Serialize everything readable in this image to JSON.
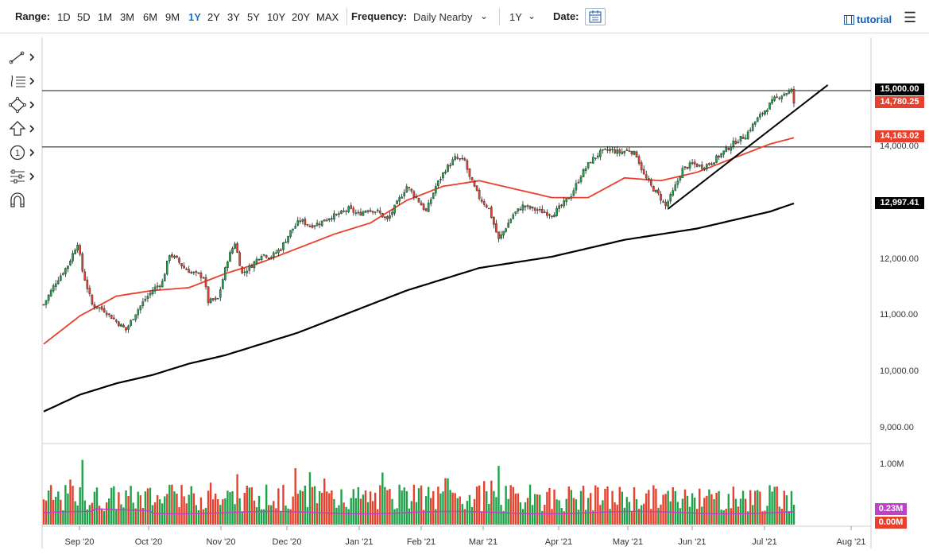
{
  "toolbar": {
    "range_label": "Range:",
    "ranges": [
      "1D",
      "5D",
      "1M",
      "3M",
      "6M",
      "9M",
      "1Y",
      "2Y",
      "3Y",
      "5Y",
      "10Y",
      "20Y",
      "MAX"
    ],
    "active_range": "1Y",
    "frequency_label": "Frequency:",
    "frequency_value": "Daily Nearby",
    "period_value": "1Y",
    "date_label": "Date:",
    "tutorial_label": "tutorial"
  },
  "drawing_tools": [
    "line-tool-icon",
    "fib-tool-icon",
    "shapes-tool-icon",
    "arrow-tool-icon",
    "numbered-marker-icon",
    "settings-tool-icon",
    "magnet-icon"
  ],
  "price_tags": [
    {
      "label": "15,000.00",
      "color": "#000000"
    },
    {
      "label": "14,780.25",
      "color": "#e8402c"
    },
    {
      "label": "14,163.02",
      "color": "#e8402c"
    },
    {
      "label": "12,997.41",
      "color": "#000000"
    }
  ],
  "volume_tags": [
    {
      "label": "0.23M",
      "color": "#c040c8"
    },
    {
      "label": "0.00M",
      "color": "#e8402c"
    }
  ],
  "chart_data": {
    "type": "candlestick",
    "x_tick_labels": [
      "Sep '20",
      "Oct '20",
      "Nov '20",
      "Dec '20",
      "Jan '21",
      "Feb '21",
      "Mar '21",
      "Apr '21",
      "May '21",
      "Jun '21",
      "Jul '21",
      "Aug '21"
    ],
    "y_tick_labels": [
      "15,000.00",
      "14,000.00",
      "12,000.00",
      "11,000.00",
      "10,000.00",
      "9,000.00"
    ],
    "y_ticks": [
      15000,
      14000,
      12000,
      11000,
      10000,
      9000
    ],
    "ylim": [
      8950,
      15800
    ],
    "volume_tick_labels": [
      "1.00M"
    ],
    "volume_ylim": [
      0,
      1.3
    ],
    "horizontal_lines": [
      15000,
      14000
    ],
    "anchors": [
      [
        0,
        11200
      ],
      [
        5,
        11600
      ],
      [
        10,
        11900
      ],
      [
        14,
        12300
      ],
      [
        16,
        11800
      ],
      [
        20,
        11200
      ],
      [
        25,
        11100
      ],
      [
        30,
        10900
      ],
      [
        34,
        10750
      ],
      [
        38,
        11050
      ],
      [
        42,
        11300
      ],
      [
        46,
        11500
      ],
      [
        49,
        11600
      ],
      [
        52,
        12100
      ],
      [
        55,
        12000
      ],
      [
        58,
        11850
      ],
      [
        62,
        11750
      ],
      [
        66,
        11700
      ],
      [
        68,
        11250
      ],
      [
        72,
        11300
      ],
      [
        76,
        12000
      ],
      [
        79,
        12300
      ],
      [
        82,
        11750
      ],
      [
        86,
        11900
      ],
      [
        90,
        12100
      ],
      [
        94,
        12050
      ],
      [
        98,
        12200
      ],
      [
        102,
        12500
      ],
      [
        106,
        12700
      ],
      [
        110,
        12600
      ],
      [
        114,
        12650
      ],
      [
        118,
        12750
      ],
      [
        122,
        12800
      ],
      [
        126,
        12900
      ],
      [
        130,
        12800
      ],
      [
        134,
        12900
      ],
      [
        138,
        12850
      ],
      [
        142,
        12700
      ],
      [
        146,
        13000
      ],
      [
        150,
        13300
      ],
      [
        154,
        13100
      ],
      [
        158,
        12850
      ],
      [
        162,
        13300
      ],
      [
        166,
        13600
      ],
      [
        170,
        13800
      ],
      [
        174,
        13750
      ],
      [
        176,
        13450
      ],
      [
        180,
        13100
      ],
      [
        184,
        12900
      ],
      [
        188,
        12350
      ],
      [
        190,
        12500
      ],
      [
        194,
        12800
      ],
      [
        198,
        12950
      ],
      [
        202,
        12900
      ],
      [
        206,
        12850
      ],
      [
        210,
        12800
      ],
      [
        214,
        12950
      ],
      [
        218,
        13150
      ],
      [
        222,
        13500
      ],
      [
        226,
        13750
      ],
      [
        230,
        13900
      ],
      [
        234,
        13950
      ],
      [
        238,
        13900
      ],
      [
        242,
        13950
      ],
      [
        245,
        13850
      ],
      [
        248,
        13500
      ],
      [
        251,
        13300
      ],
      [
        254,
        13150
      ],
      [
        257,
        12950
      ],
      [
        260,
        13200
      ],
      [
        264,
        13600
      ],
      [
        268,
        13700
      ],
      [
        272,
        13650
      ],
      [
        275,
        13700
      ],
      [
        278,
        13800
      ],
      [
        282,
        13950
      ],
      [
        286,
        14100
      ],
      [
        290,
        14200
      ],
      [
        294,
        14450
      ],
      [
        298,
        14650
      ],
      [
        302,
        14850
      ],
      [
        306,
        14950
      ],
      [
        309,
        15000
      ],
      [
        310,
        14780
      ]
    ],
    "sma50_anchors": [
      [
        0,
        10500
      ],
      [
        15,
        11000
      ],
      [
        30,
        11350
      ],
      [
        45,
        11450
      ],
      [
        60,
        11500
      ],
      [
        75,
        11750
      ],
      [
        90,
        11950
      ],
      [
        105,
        12200
      ],
      [
        120,
        12450
      ],
      [
        135,
        12650
      ],
      [
        150,
        13050
      ],
      [
        165,
        13300
      ],
      [
        180,
        13400
      ],
      [
        195,
        13250
      ],
      [
        210,
        13100
      ],
      [
        225,
        13100
      ],
      [
        240,
        13450
      ],
      [
        255,
        13400
      ],
      [
        270,
        13550
      ],
      [
        285,
        13800
      ],
      [
        300,
        14050
      ],
      [
        310,
        14163
      ]
    ],
    "sma200_anchors": [
      [
        0,
        9300
      ],
      [
        15,
        9600
      ],
      [
        30,
        9800
      ],
      [
        45,
        9950
      ],
      [
        60,
        10150
      ],
      [
        75,
        10300
      ],
      [
        90,
        10500
      ],
      [
        105,
        10700
      ],
      [
        120,
        10950
      ],
      [
        135,
        11200
      ],
      [
        150,
        11450
      ],
      [
        165,
        11650
      ],
      [
        180,
        11850
      ],
      [
        195,
        11950
      ],
      [
        210,
        12050
      ],
      [
        225,
        12200
      ],
      [
        240,
        12350
      ],
      [
        255,
        12450
      ],
      [
        270,
        12550
      ],
      [
        285,
        12700
      ],
      [
        300,
        12850
      ],
      [
        310,
        12997
      ]
    ],
    "trendline": [
      [
        258,
        12900
      ],
      [
        324,
        15100
      ]
    ],
    "n_bars": 311
  }
}
